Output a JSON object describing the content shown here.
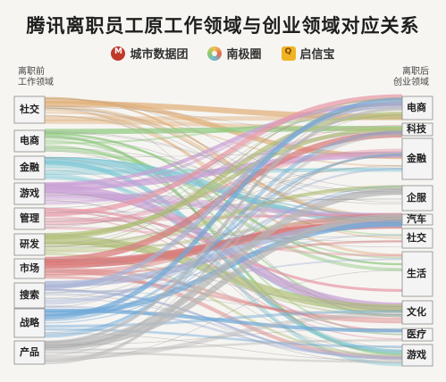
{
  "title": "腾讯离职员工原工作领域与创业领域对应关系",
  "sources": [
    {
      "name": "城市数据团",
      "icon": "city-data-logo-icon"
    },
    {
      "name": "南极圈",
      "icon": "nanjiquan-logo-icon"
    },
    {
      "name": "启信宝",
      "icon": "qixinbao-logo-icon"
    }
  ],
  "left_axis": {
    "line1": "离职前",
    "line2": "工作领域"
  },
  "right_axis": {
    "line1": "离职后",
    "line2": "创业领域"
  },
  "left_nodes": [
    {
      "label": "社交",
      "color": "#e0b07a"
    },
    {
      "label": "电商",
      "color": "#8fca7f"
    },
    {
      "label": "金融",
      "color": "#7fc7d4"
    },
    {
      "label": "游戏",
      "color": "#c9a0d6"
    },
    {
      "label": "管理",
      "color": "#e79aa8"
    },
    {
      "label": "研发",
      "color": "#b3c07a"
    },
    {
      "label": "市场",
      "color": "#d97a7a"
    },
    {
      "label": "搜索",
      "color": "#a7b3d6"
    },
    {
      "label": "战略",
      "color": "#6fa9d8"
    },
    {
      "label": "产品",
      "color": "#b7b7b7"
    }
  ],
  "right_nodes": [
    {
      "label": "电商"
    },
    {
      "label": "科技"
    },
    {
      "label": "金融"
    },
    {
      "label": "企服"
    },
    {
      "label": "汽车"
    },
    {
      "label": "社交"
    },
    {
      "label": "生活"
    },
    {
      "label": "文化"
    },
    {
      "label": "医疗"
    },
    {
      "label": "游戏"
    }
  ]
}
